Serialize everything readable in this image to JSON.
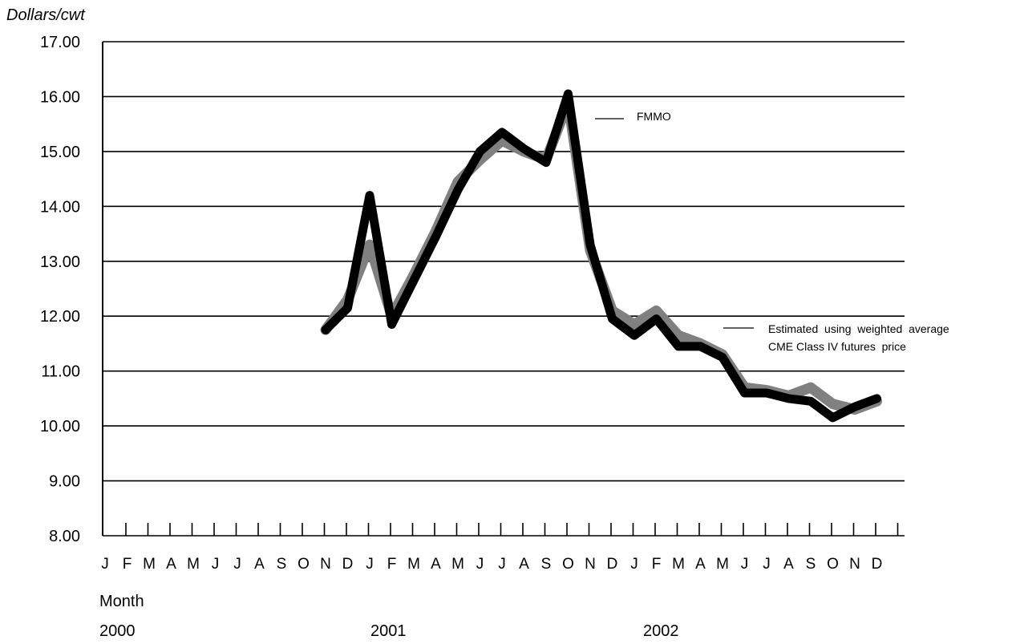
{
  "chart_data": {
    "type": "line",
    "ylabel": "Dollars/cwt",
    "xlabel": "Month",
    "ylim": [
      8.0,
      17.0
    ],
    "yticks": [
      "8.00",
      "9.00",
      "10.00",
      "11.00",
      "12.00",
      "13.00",
      "14.00",
      "15.00",
      "16.00",
      "17.00"
    ],
    "grid": true,
    "months": [
      "J",
      "F",
      "M",
      "A",
      "M",
      "J",
      "J",
      "A",
      "S",
      "O",
      "N",
      "D",
      "J",
      "F",
      "M",
      "A",
      "M",
      "J",
      "J",
      "A",
      "S",
      "O",
      "N",
      "D",
      "J",
      "F",
      "M",
      "A",
      "M",
      "J",
      "J",
      "A",
      "S",
      "O",
      "N",
      "D"
    ],
    "years": [
      {
        "label": "2000",
        "first_month_index": 0
      },
      {
        "label": "2001",
        "first_month_index": 12
      },
      {
        "label": "2002",
        "first_month_index": 24
      }
    ],
    "series": [
      {
        "name": "FMMO",
        "color": "#000000",
        "start_index": 10,
        "values": [
          11.75,
          12.15,
          14.2,
          11.85,
          12.65,
          13.45,
          14.3,
          15.0,
          15.35,
          15.05,
          14.8,
          16.05,
          13.3,
          11.95,
          11.65,
          11.95,
          11.45,
          11.45,
          11.25,
          10.6,
          10.6,
          10.5,
          10.45,
          10.15,
          10.35,
          10.5
        ]
      },
      {
        "name": "Estimated using weighted average CME Class IV futures price",
        "color": "#808080",
        "start_index": 10,
        "values": [
          11.75,
          12.3,
          13.3,
          12.0,
          12.75,
          13.55,
          14.45,
          14.85,
          15.2,
          15.0,
          14.85,
          15.9,
          13.2,
          12.1,
          11.85,
          12.1,
          11.65,
          11.5,
          11.3,
          10.7,
          10.65,
          10.55,
          10.7,
          10.4,
          10.3,
          10.45
        ]
      }
    ],
    "annotations": {
      "fmmo": "FMMO",
      "cme_line1": "Estimated  using  weighted  average",
      "cme_line2": "CME Class IV futures  price"
    }
  }
}
